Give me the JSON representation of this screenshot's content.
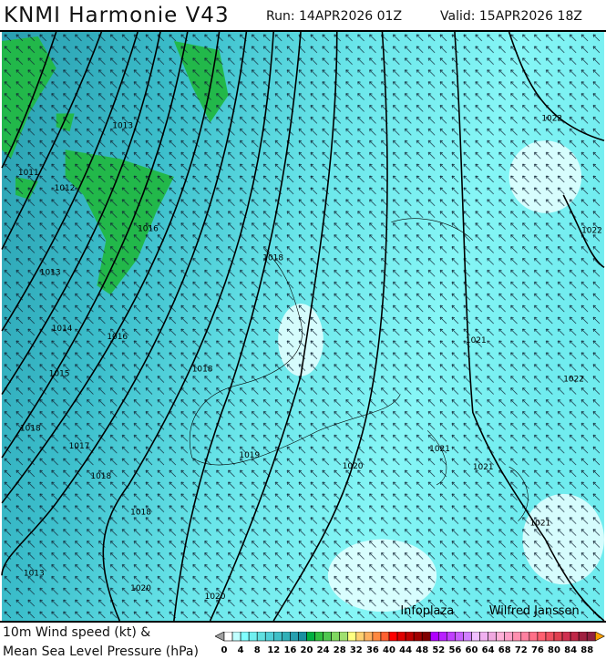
{
  "header": {
    "title": "KNMI Harmonie V43",
    "run": "Run: 14APR2026 01Z",
    "valid": "Valid: 15APR2026 18Z"
  },
  "map": {
    "credit_left": "Infoplaza",
    "credit_right": "Wilfred Janssen",
    "isobar_labels": [
      "1011",
      "1012",
      "1013",
      "1013",
      "1014",
      "1015",
      "1016",
      "1016",
      "1017",
      "1018",
      "1018",
      "1018",
      "1018",
      "1019",
      "1020",
      "1020",
      "1020",
      "1021",
      "1021",
      "1021",
      "1021",
      "1022",
      "1022",
      "1022",
      "1018"
    ],
    "overlay": "wind-direction-arrows"
  },
  "legend": {
    "line1": "10m Wind speed (kt) &",
    "line2": "Mean Sea Level Pressure (hPa)",
    "ticks": [
      "0",
      "4",
      "8",
      "12",
      "16",
      "20",
      "24",
      "28",
      "32",
      "36",
      "40",
      "44",
      "48",
      "52",
      "56",
      "60",
      "64",
      "68",
      "72",
      "76",
      "80",
      "84",
      "88"
    ],
    "colors": [
      "#ffffff",
      "#c0ffff",
      "#80ffff",
      "#70f0f0",
      "#60e0e0",
      "#50d0d8",
      "#40c0c8",
      "#30b0b8",
      "#28a0b0",
      "#1890a0",
      "#00b040",
      "#30c040",
      "#50c850",
      "#80d860",
      "#a0e070",
      "#ffff80",
      "#ffd070",
      "#ffb060",
      "#ff8840",
      "#ff6030",
      "#ff0000",
      "#e00000",
      "#c00000",
      "#a00000",
      "#800000",
      "#b000ff",
      "#b820ff",
      "#c040ff",
      "#c860ff",
      "#d080ff",
      "#f0c0ff",
      "#f0b0f0",
      "#f0a8e0",
      "#ffb0d8",
      "#ffa0c8",
      "#ff90b0",
      "#ff80a0",
      "#ff7088",
      "#ff6070",
      "#f05060",
      "#e04050",
      "#d03050",
      "#c02848",
      "#a02040",
      "#902040"
    ],
    "under_color": "#a0a0a0",
    "over_color": "#ffa000"
  }
}
